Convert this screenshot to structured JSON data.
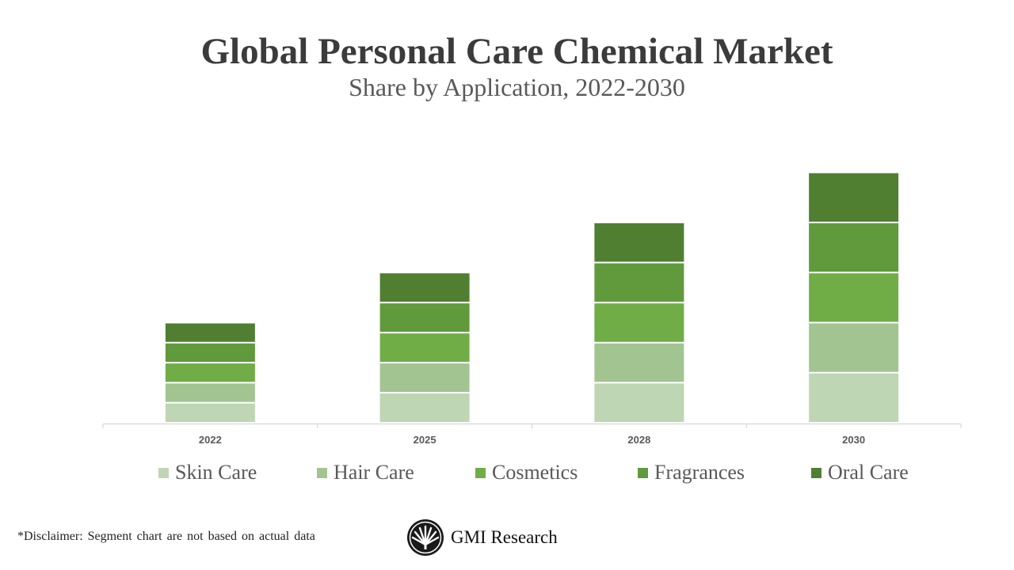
{
  "chart_data": {
    "type": "bar",
    "stacked": true,
    "title": "Global Personal Care Chemical Market",
    "subtitle": "Share by Application, 2022-2030",
    "categories": [
      "2022",
      "2025",
      "2028",
      "2030"
    ],
    "series": [
      {
        "name": "Skin Care",
        "color": "#bed6b3",
        "values": [
          2,
          3,
          4,
          5
        ]
      },
      {
        "name": "Hair Care",
        "color": "#a2c491",
        "values": [
          2,
          3,
          4,
          5
        ]
      },
      {
        "name": "Cosmetics",
        "color": "#70ad47",
        "values": [
          2,
          3,
          4,
          5
        ]
      },
      {
        "name": "Fragrances",
        "color": "#609a3c",
        "values": [
          2,
          3,
          4,
          5
        ]
      },
      {
        "name": "Oral Care",
        "color": "#507f32",
        "values": [
          2,
          3,
          4,
          5
        ]
      }
    ],
    "y_axis_visible": false,
    "grid": false,
    "legend_position": "bottom"
  },
  "footer": {
    "disclaimer": "*Disclaimer:   Segment chart are not based on actual data",
    "brand": "GMI Research"
  }
}
